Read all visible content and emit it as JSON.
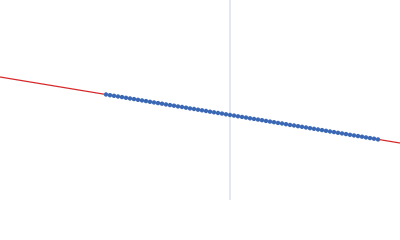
{
  "chart_data": {
    "type": "scatter",
    "xlim": [
      0,
      400
    ],
    "ylim": [
      200,
      0
    ],
    "reference_x": 230,
    "reference_color": "#c8d0e0",
    "series": [
      {
        "type": "scatter",
        "color": "#3a68b4",
        "x": [
          106,
          110,
          114,
          118,
          122,
          126,
          130,
          134,
          138,
          142,
          146,
          150,
          154,
          158,
          162,
          166,
          170,
          174,
          178,
          182,
          186,
          190,
          194,
          198,
          202,
          206,
          210,
          214,
          218,
          222,
          226,
          230,
          234,
          238,
          242,
          246,
          250,
          254,
          258,
          262,
          266,
          270,
          274,
          278,
          282,
          286,
          290,
          294,
          298,
          302,
          306,
          310,
          314,
          318,
          322,
          326,
          330,
          334,
          338,
          342,
          346,
          350,
          354,
          358,
          362,
          366,
          370,
          374,
          378
        ],
        "values": [
          94.5,
          95.2,
          95.8,
          96.5,
          97.1,
          97.8,
          98.5,
          99.1,
          99.8,
          100.4,
          101.1,
          101.8,
          102.4,
          103.1,
          103.7,
          104.4,
          105.1,
          105.7,
          106.4,
          107.0,
          107.7,
          108.4,
          109.0,
          109.7,
          110.3,
          111.0,
          111.7,
          112.3,
          113.0,
          113.6,
          114.3,
          115.0,
          115.6,
          116.3,
          116.9,
          117.6,
          118.3,
          118.9,
          119.6,
          120.2,
          120.9,
          121.6,
          122.2,
          122.9,
          123.5,
          124.2,
          124.9,
          125.5,
          126.2,
          126.8,
          127.5,
          128.2,
          128.8,
          129.5,
          130.1,
          130.8,
          131.5,
          132.1,
          132.8,
          133.4,
          134.1,
          134.8,
          135.4,
          136.1,
          136.7,
          137.4,
          138.1,
          138.7,
          139.4
        ]
      },
      {
        "type": "line",
        "color": "#d62728",
        "x": [
          0,
          400
        ],
        "values": [
          77,
          143
        ]
      }
    ]
  }
}
